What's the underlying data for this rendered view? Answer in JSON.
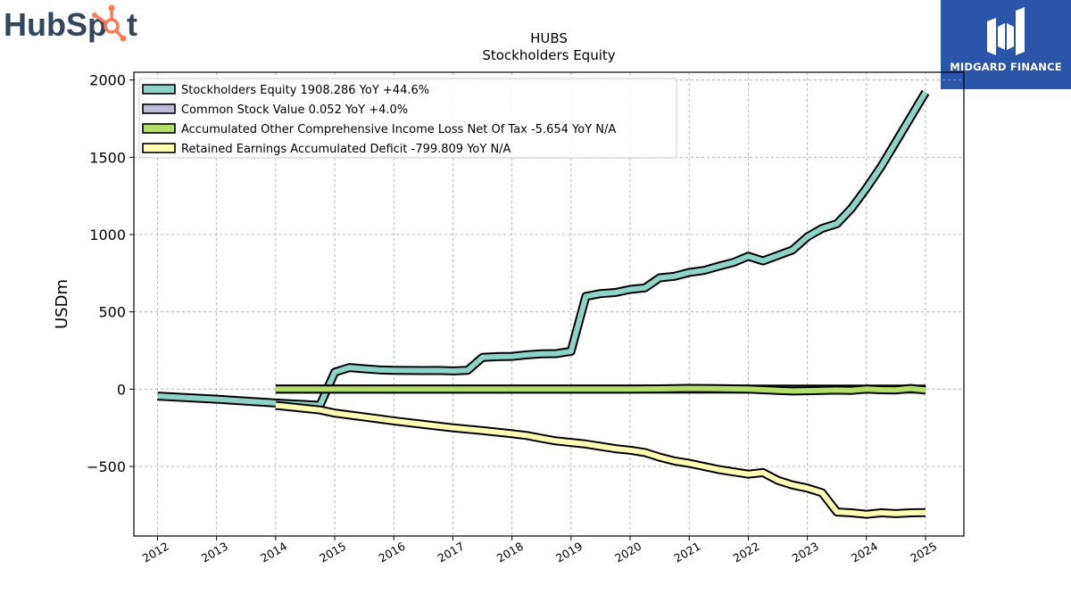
{
  "logos": {
    "left_brand": "HubSpot",
    "left_brand_parts": [
      "HubSp",
      "t"
    ],
    "right_brand": "MIDGARD FINANCE"
  },
  "chart_data": {
    "type": "line",
    "title": "HUBS",
    "subtitle": "Stockholders  Equity",
    "xlabel": "",
    "ylabel": "USDm",
    "xlim": [
      2011.6,
      2025.65
    ],
    "ylim": [
      -950,
      2050
    ],
    "x_ticks": [
      2012,
      2013,
      2014,
      2015,
      2016,
      2017,
      2018,
      2019,
      2020,
      2021,
      2022,
      2023,
      2024,
      2025
    ],
    "y_ticks": [
      -500,
      0,
      500,
      1000,
      1500,
      2000
    ],
    "y_tick_labels": [
      "−500",
      "0",
      "500",
      "1000",
      "1500",
      "2000"
    ],
    "grid": true,
    "legend_position": "top-left",
    "series": [
      {
        "name": "Stockholders Equity  1908.286 YoY +44.6%",
        "color": "#8dd3c7",
        "x": [
          2012.0,
          2013.0,
          2014.0,
          2014.75,
          2015.0,
          2015.25,
          2015.5,
          2015.75,
          2016.0,
          2016.25,
          2016.5,
          2016.75,
          2017.0,
          2017.25,
          2017.5,
          2017.75,
          2018.0,
          2018.25,
          2018.5,
          2018.75,
          2019.0,
          2019.25,
          2019.5,
          2019.75,
          2020.0,
          2020.25,
          2020.5,
          2020.75,
          2021.0,
          2021.25,
          2021.5,
          2021.75,
          2022.0,
          2022.25,
          2022.5,
          2022.75,
          2023.0,
          2023.25,
          2023.5,
          2023.75,
          2024.0,
          2024.25,
          2024.5,
          2024.75,
          2025.0
        ],
        "values": [
          -45,
          -65,
          -90,
          -105,
          110,
          140,
          132,
          125,
          122,
          121,
          120,
          121,
          118,
          122,
          205,
          210,
          212,
          222,
          228,
          230,
          245,
          600,
          618,
          625,
          645,
          655,
          720,
          730,
          755,
          768,
          795,
          820,
          860,
          830,
          865,
          900,
          985,
          1040,
          1070,
          1170,
          1300,
          1440,
          1600,
          1760,
          1920
        ]
      },
      {
        "name": "Common Stock Value  0.052 YoY +4.0%",
        "color": "#bebada",
        "x": [
          2014.0,
          2015.0,
          2016.0,
          2017.0,
          2018.0,
          2019.0,
          2020.0,
          2021.0,
          2022.0,
          2023.0,
          2024.0,
          2025.0
        ],
        "values": [
          0.03,
          0.034,
          0.036,
          0.038,
          0.04,
          0.042,
          0.045,
          0.047,
          0.048,
          0.049,
          0.05,
          0.052
        ]
      },
      {
        "name": "Accumulated Other Comprehensive Income Loss Net Of Tax  -5.654 YoY N/A",
        "color": "#b3de69",
        "x": [
          2014.0,
          2015.0,
          2016.0,
          2017.0,
          2018.0,
          2019.0,
          2020.0,
          2020.5,
          2021.0,
          2021.5,
          2022.0,
          2022.5,
          2022.75,
          2023.0,
          2023.5,
          2023.75,
          2024.0,
          2024.25,
          2024.5,
          2024.75,
          2025.0
        ],
        "values": [
          0,
          0,
          0,
          0,
          0,
          0,
          0,
          2,
          5,
          3,
          0,
          -8,
          -12,
          -10,
          -6,
          -8,
          0,
          -4,
          -5,
          4,
          -6
        ]
      },
      {
        "name": "Retained Earnings Accumulated Deficit  -799.809 YoY N/A",
        "color": "#ffffb3",
        "x": [
          2014.0,
          2014.75,
          2015.0,
          2015.5,
          2016.0,
          2016.5,
          2017.0,
          2017.5,
          2018.0,
          2018.25,
          2018.5,
          2018.75,
          2019.0,
          2019.25,
          2019.5,
          2019.75,
          2020.0,
          2020.25,
          2020.5,
          2020.75,
          2021.0,
          2021.25,
          2021.5,
          2021.75,
          2022.0,
          2022.25,
          2022.5,
          2022.75,
          2023.0,
          2023.25,
          2023.5,
          2023.75,
          2024.0,
          2024.25,
          2024.5,
          2024.75,
          2025.0
        ],
        "values": [
          -105,
          -135,
          -155,
          -180,
          -205,
          -228,
          -250,
          -268,
          -288,
          -300,
          -318,
          -335,
          -345,
          -355,
          -370,
          -385,
          -395,
          -410,
          -440,
          -465,
          -480,
          -500,
          -520,
          -535,
          -550,
          -540,
          -590,
          -620,
          -640,
          -670,
          -795,
          -800,
          -810,
          -800,
          -805,
          -800,
          -798
        ]
      }
    ]
  }
}
